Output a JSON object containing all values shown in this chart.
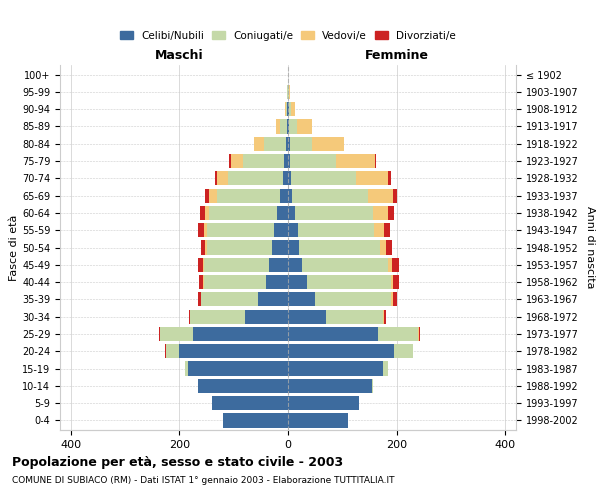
{
  "age_groups": [
    "0-4",
    "5-9",
    "10-14",
    "15-19",
    "20-24",
    "25-29",
    "30-34",
    "35-39",
    "40-44",
    "45-49",
    "50-54",
    "55-59",
    "60-64",
    "65-69",
    "70-74",
    "75-79",
    "80-84",
    "85-89",
    "90-94",
    "95-99",
    "100+"
  ],
  "birth_years": [
    "1998-2002",
    "1993-1997",
    "1988-1992",
    "1983-1987",
    "1978-1982",
    "1973-1977",
    "1968-1972",
    "1963-1967",
    "1958-1962",
    "1953-1957",
    "1948-1952",
    "1943-1947",
    "1938-1942",
    "1933-1937",
    "1928-1932",
    "1923-1927",
    "1918-1922",
    "1913-1917",
    "1908-1912",
    "1903-1907",
    "≤ 1902"
  ],
  "males": {
    "celibe": [
      120,
      140,
      165,
      185,
      200,
      175,
      80,
      55,
      40,
      35,
      30,
      25,
      20,
      15,
      10,
      8,
      4,
      2,
      1,
      0,
      0
    ],
    "coniugato": [
      0,
      0,
      0,
      5,
      25,
      60,
      100,
      105,
      115,
      120,
      120,
      125,
      125,
      115,
      100,
      75,
      40,
      12,
      3,
      1,
      0
    ],
    "vedovo": [
      0,
      0,
      0,
      0,
      0,
      0,
      0,
      0,
      1,
      2,
      3,
      5,
      8,
      15,
      20,
      22,
      18,
      8,
      2,
      0,
      0
    ],
    "divorziato": [
      0,
      0,
      0,
      0,
      1,
      2,
      3,
      5,
      8,
      8,
      8,
      10,
      10,
      8,
      5,
      3,
      1,
      0,
      0,
      0,
      0
    ]
  },
  "females": {
    "nubile": [
      110,
      130,
      155,
      175,
      195,
      165,
      70,
      50,
      35,
      25,
      20,
      18,
      12,
      8,
      5,
      4,
      3,
      2,
      1,
      0,
      0
    ],
    "coniugata": [
      0,
      0,
      2,
      10,
      35,
      75,
      105,
      140,
      155,
      160,
      150,
      140,
      145,
      140,
      120,
      85,
      42,
      15,
      4,
      1,
      0
    ],
    "vedova": [
      0,
      0,
      0,
      0,
      0,
      1,
      2,
      3,
      4,
      7,
      10,
      18,
      28,
      45,
      60,
      72,
      58,
      28,
      8,
      2,
      0
    ],
    "divorziata": [
      0,
      0,
      0,
      0,
      1,
      2,
      4,
      7,
      10,
      12,
      12,
      11,
      10,
      8,
      5,
      2,
      1,
      0,
      0,
      0,
      0
    ]
  },
  "colors": {
    "celibe_nubile": "#3d6b9e",
    "coniugato_a": "#c5d9a8",
    "vedovo_a": "#f5c97a",
    "divorziato_a": "#cc2222"
  },
  "title": "Popolazione per età, sesso e stato civile - 2003",
  "subtitle": "COMUNE DI SUBIACO (RM) - Dati ISTAT 1° gennaio 2003 - Elaborazione TUTTITALIA.IT",
  "xlabel_left": "Maschi",
  "xlabel_right": "Femmine",
  "ylabel_left": "Fasce di età",
  "ylabel_right": "Anni di nascita",
  "xlim": 420,
  "legend_labels": [
    "Celibi/Nubili",
    "Coniugati/e",
    "Vedovi/e",
    "Divorziati/e"
  ],
  "xticks": [
    -400,
    -200,
    0,
    200,
    400
  ],
  "xtick_labels": [
    "400",
    "200",
    "0",
    "200",
    "400"
  ]
}
